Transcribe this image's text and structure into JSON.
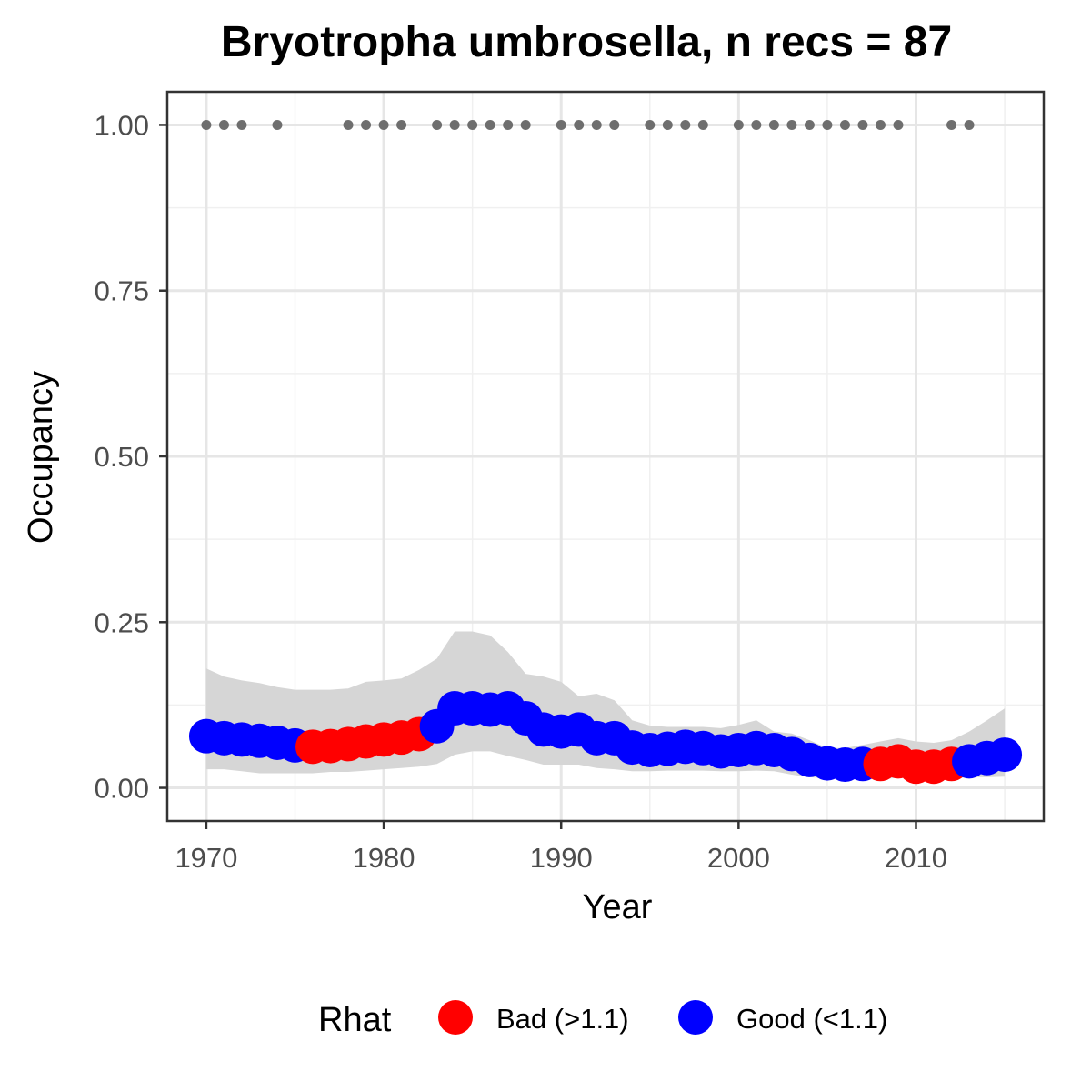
{
  "chart_data": {
    "type": "line",
    "title": "Bryotropha umbrosella, n recs = 87",
    "xlabel": "Year",
    "ylabel": "Occupancy",
    "xlim": [
      1967.8,
      2017.2
    ],
    "ylim": [
      -0.05,
      1.05
    ],
    "x_ticks": [
      1970,
      1980,
      1990,
      2000,
      2010
    ],
    "x_minor_ticks": [
      1975,
      1985,
      1995,
      2005,
      2015
    ],
    "y_ticks": [
      0.0,
      0.25,
      0.5,
      0.75,
      1.0
    ],
    "y_tick_labels": [
      "0.00",
      "0.25",
      "0.50",
      "0.75",
      "1.00"
    ],
    "y_minor_ticks": [
      0.125,
      0.375,
      0.625,
      0.875
    ],
    "grid": true,
    "legend": {
      "title": "Rhat",
      "position": "bottom",
      "entries": [
        {
          "label": "Bad (>1.1)",
          "color": "#ff0000"
        },
        {
          "label": "Good (<1.1)",
          "color": "#0000ff"
        }
      ]
    },
    "colors": {
      "bad": "#ff0000",
      "good": "#0000ff",
      "ribbon": "#d6d6d6",
      "records": "#6e6e6e"
    },
    "series": [
      {
        "name": "Occupancy",
        "x": [
          1970,
          1971,
          1972,
          1973,
          1974,
          1975,
          1976,
          1977,
          1978,
          1979,
          1980,
          1981,
          1982,
          1983,
          1984,
          1985,
          1986,
          1987,
          1988,
          1989,
          1990,
          1991,
          1992,
          1993,
          1994,
          1995,
          1996,
          1997,
          1998,
          1999,
          2000,
          2001,
          2002,
          2003,
          2004,
          2005,
          2006,
          2007,
          2008,
          2009,
          2010,
          2011,
          2012,
          2013,
          2014,
          2015
        ],
        "y": [
          0.078,
          0.075,
          0.073,
          0.071,
          0.068,
          0.064,
          0.062,
          0.063,
          0.066,
          0.07,
          0.073,
          0.076,
          0.081,
          0.093,
          0.12,
          0.12,
          0.118,
          0.12,
          0.105,
          0.088,
          0.085,
          0.088,
          0.075,
          0.075,
          0.061,
          0.057,
          0.059,
          0.062,
          0.06,
          0.055,
          0.057,
          0.06,
          0.057,
          0.051,
          0.042,
          0.037,
          0.035,
          0.036,
          0.036,
          0.04,
          0.032,
          0.032,
          0.036,
          0.04,
          0.045,
          0.05
        ],
        "rhat": [
          "Good",
          "Good",
          "Good",
          "Good",
          "Good",
          "Good",
          "Bad",
          "Bad",
          "Bad",
          "Bad",
          "Bad",
          "Bad",
          "Bad",
          "Good",
          "Good",
          "Good",
          "Good",
          "Good",
          "Good",
          "Good",
          "Good",
          "Good",
          "Good",
          "Good",
          "Good",
          "Good",
          "Good",
          "Good",
          "Good",
          "Good",
          "Good",
          "Good",
          "Good",
          "Good",
          "Good",
          "Good",
          "Good",
          "Good",
          "Bad",
          "Bad",
          "Bad",
          "Bad",
          "Bad",
          "Good",
          "Good",
          "Good"
        ],
        "lower": [
          0.028,
          0.028,
          0.025,
          0.022,
          0.022,
          0.022,
          0.022,
          0.024,
          0.024,
          0.026,
          0.028,
          0.03,
          0.032,
          0.036,
          0.05,
          0.055,
          0.055,
          0.048,
          0.042,
          0.035,
          0.035,
          0.035,
          0.03,
          0.028,
          0.025,
          0.025,
          0.026,
          0.026,
          0.026,
          0.025,
          0.025,
          0.026,
          0.025,
          0.02,
          0.016,
          0.014,
          0.013,
          0.013,
          0.013,
          0.015,
          0.014,
          0.014,
          0.014,
          0.016,
          0.016,
          0.017
        ],
        "upper": [
          0.18,
          0.168,
          0.162,
          0.158,
          0.152,
          0.148,
          0.148,
          0.148,
          0.15,
          0.16,
          0.162,
          0.165,
          0.178,
          0.195,
          0.236,
          0.236,
          0.23,
          0.205,
          0.172,
          0.168,
          0.16,
          0.138,
          0.142,
          0.132,
          0.102,
          0.094,
          0.092,
          0.092,
          0.092,
          0.09,
          0.095,
          0.102,
          0.085,
          0.082,
          0.072,
          0.06,
          0.06,
          0.065,
          0.07,
          0.075,
          0.07,
          0.068,
          0.072,
          0.085,
          0.102,
          0.12
        ]
      }
    ],
    "records": [
      1970,
      1971,
      1972,
      1974,
      1978,
      1979,
      1980,
      1981,
      1983,
      1984,
      1985,
      1986,
      1987,
      1988,
      1990,
      1991,
      1992,
      1993,
      1995,
      1996,
      1997,
      1998,
      2000,
      2001,
      2002,
      2003,
      2004,
      2005,
      2006,
      2007,
      2008,
      2009,
      2012,
      2013
    ],
    "records_y": 1.0
  }
}
